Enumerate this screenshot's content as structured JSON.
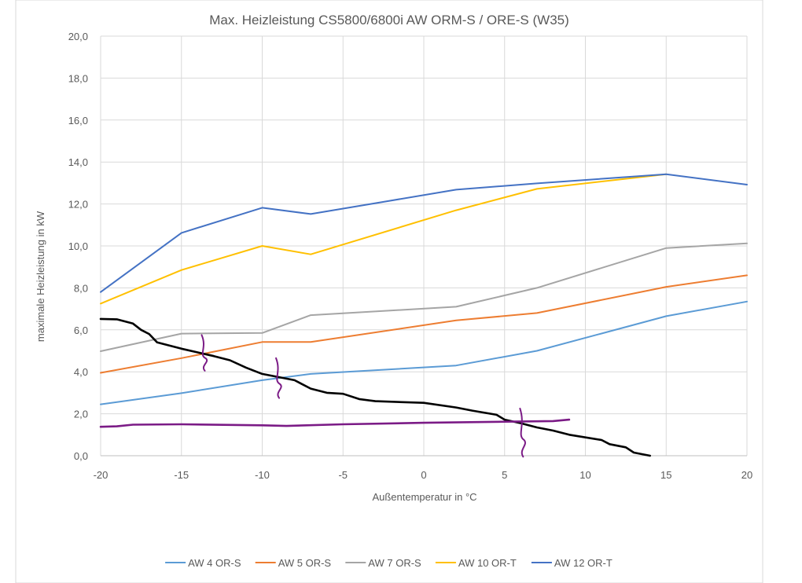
{
  "chart_data": {
    "type": "line",
    "title": "Max. Heizleistung CS5800/6800i AW ORM-S / ORE-S (W35)",
    "xlabel": "Außentemperatur in °C",
    "ylabel": "maximale Heizleistung in kW",
    "xlim": [
      -20,
      20
    ],
    "ylim": [
      0,
      20
    ],
    "x_ticks": [
      "-20",
      "-15",
      "-10",
      "-5",
      "0",
      "5",
      "10",
      "15",
      "20"
    ],
    "y_ticks": [
      "0,0",
      "2,0",
      "4,0",
      "6,0",
      "8,0",
      "10,0",
      "12,0",
      "14,0",
      "16,0",
      "18,0",
      "20,0"
    ],
    "grid": true,
    "legend_position": "bottom",
    "series": [
      {
        "name": "AW 4 OR-S",
        "color": "#5b9bd5",
        "points": [
          [
            -20,
            2.45
          ],
          [
            -15,
            2.98
          ],
          [
            -10,
            3.6
          ],
          [
            -7,
            3.9
          ],
          [
            2,
            4.3
          ],
          [
            7,
            5.0
          ],
          [
            15,
            6.65
          ],
          [
            20,
            7.35
          ]
        ]
      },
      {
        "name": "AW 5 OR-S",
        "color": "#ed7d31",
        "points": [
          [
            -20,
            3.95
          ],
          [
            -15,
            4.65
          ],
          [
            -10,
            5.42
          ],
          [
            -7,
            5.42
          ],
          [
            2,
            6.45
          ],
          [
            7,
            6.8
          ],
          [
            15,
            8.05
          ],
          [
            20,
            8.6
          ]
        ]
      },
      {
        "name": "AW 7 OR-S",
        "color": "#a5a5a5",
        "points": [
          [
            -20,
            4.98
          ],
          [
            -15,
            5.82
          ],
          [
            -10,
            5.85
          ],
          [
            -7,
            6.7
          ],
          [
            2,
            7.1
          ],
          [
            7,
            8.0
          ],
          [
            15,
            9.9
          ],
          [
            20,
            10.12
          ]
        ]
      },
      {
        "name": "AW 10 OR-T",
        "color": "#ffc000",
        "points": [
          [
            -20,
            7.25
          ],
          [
            -15,
            8.85
          ],
          [
            -10,
            10.0
          ],
          [
            -7,
            9.6
          ],
          [
            2,
            11.7
          ],
          [
            7,
            12.72
          ],
          [
            15,
            13.42
          ]
        ]
      },
      {
        "name": "AW 12 OR-T",
        "color": "#4472c4",
        "points": [
          [
            -20,
            7.8
          ],
          [
            -15,
            10.62
          ],
          [
            -10,
            11.82
          ],
          [
            -7,
            11.52
          ],
          [
            2,
            12.68
          ],
          [
            7,
            12.98
          ],
          [
            15,
            13.42
          ],
          [
            20,
            12.92
          ]
        ]
      }
    ],
    "annotations": [
      {
        "type": "freehand-line",
        "color": "#000000",
        "points": [
          [
            -20,
            6.52
          ],
          [
            -19,
            6.5
          ],
          [
            -18,
            6.3
          ],
          [
            -17.5,
            6.0
          ],
          [
            -17,
            5.8
          ],
          [
            -16.5,
            5.4
          ],
          [
            -15,
            5.1
          ],
          [
            -13,
            4.75
          ],
          [
            -12,
            4.55
          ],
          [
            -11,
            4.2
          ],
          [
            -10,
            3.9
          ],
          [
            -8,
            3.6
          ],
          [
            -7,
            3.2
          ],
          [
            -6,
            3.0
          ],
          [
            -5,
            2.95
          ],
          [
            -4,
            2.7
          ],
          [
            -3,
            2.6
          ],
          [
            0,
            2.52
          ],
          [
            2,
            2.3
          ],
          [
            3,
            2.15
          ],
          [
            4.5,
            1.95
          ],
          [
            5,
            1.72
          ],
          [
            6,
            1.55
          ],
          [
            7,
            1.35
          ],
          [
            8,
            1.2
          ],
          [
            9,
            1.0
          ],
          [
            11,
            0.75
          ],
          [
            11.5,
            0.55
          ],
          [
            12.5,
            0.4
          ],
          [
            13,
            0.15
          ],
          [
            14,
            0.0
          ]
        ]
      },
      {
        "type": "freehand-line",
        "color": "#7b1b86",
        "points": [
          [
            -20,
            1.38
          ],
          [
            -19,
            1.4
          ],
          [
            -18,
            1.48
          ],
          [
            -15,
            1.5
          ],
          [
            -10,
            1.45
          ],
          [
            -8.5,
            1.42
          ],
          [
            -5,
            1.5
          ],
          [
            0,
            1.57
          ],
          [
            5,
            1.62
          ],
          [
            8,
            1.65
          ],
          [
            9,
            1.72
          ]
        ]
      },
      {
        "type": "freehand-mark",
        "color": "#7b1b86",
        "x": -13.6,
        "y": 4.9,
        "dy": 0.85
      },
      {
        "type": "freehand-mark",
        "color": "#7b1b86",
        "x": -9.0,
        "y": 3.7,
        "dy": 0.95
      },
      {
        "type": "freehand-mark",
        "color": "#7b1b86",
        "x": 6.1,
        "y": 1.1,
        "dy": 1.15
      }
    ]
  }
}
